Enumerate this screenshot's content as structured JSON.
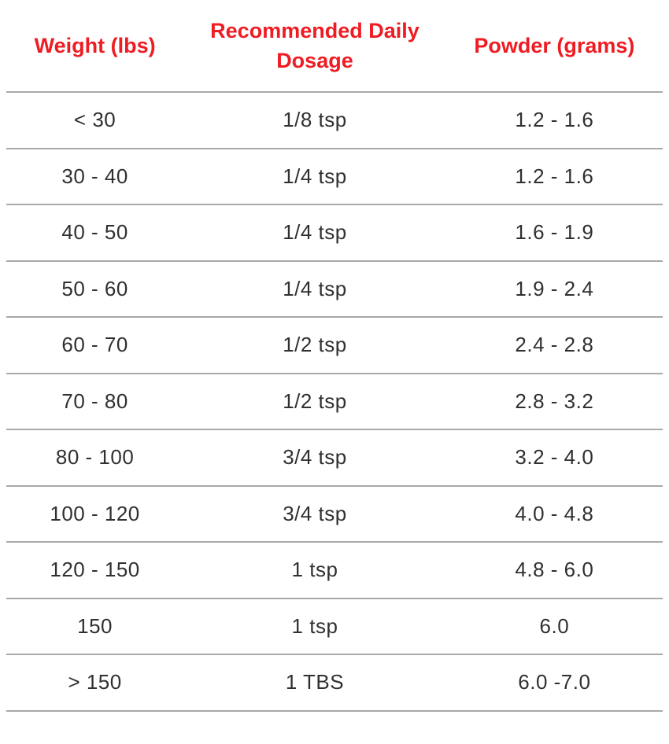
{
  "colors": {
    "accent": "#ee1c23",
    "text": "#303030",
    "divider": "#a9a9a9",
    "background": "#ffffff"
  },
  "table": {
    "headers": {
      "weight": "Weight (lbs)",
      "dosage": "Recommended Daily Dosage",
      "powder": "Powder (grams)"
    },
    "rows": [
      {
        "weight": "< 30",
        "dosage": "1/8 tsp",
        "powder": "1.2 - 1.6"
      },
      {
        "weight": "30 - 40",
        "dosage": "1/4 tsp",
        "powder": "1.2 - 1.6"
      },
      {
        "weight": "40 - 50",
        "dosage": "1/4 tsp",
        "powder": "1.6 - 1.9"
      },
      {
        "weight": "50 - 60",
        "dosage": "1/4 tsp",
        "powder": "1.9 - 2.4"
      },
      {
        "weight": "60 - 70",
        "dosage": "1/2 tsp",
        "powder": "2.4 - 2.8"
      },
      {
        "weight": "70 - 80",
        "dosage": "1/2 tsp",
        "powder": "2.8 - 3.2"
      },
      {
        "weight": "80 - 100",
        "dosage": "3/4 tsp",
        "powder": "3.2 - 4.0"
      },
      {
        "weight": "100 - 120",
        "dosage": "3/4 tsp",
        "powder": "4.0 - 4.8"
      },
      {
        "weight": "120 - 150",
        "dosage": "1 tsp",
        "powder": "4.8 - 6.0"
      },
      {
        "weight": "150",
        "dosage": "1 tsp",
        "powder": "6.0"
      },
      {
        "weight": "> 150",
        "dosage": "1 TBS",
        "powder": "6.0 -7.0"
      }
    ]
  }
}
